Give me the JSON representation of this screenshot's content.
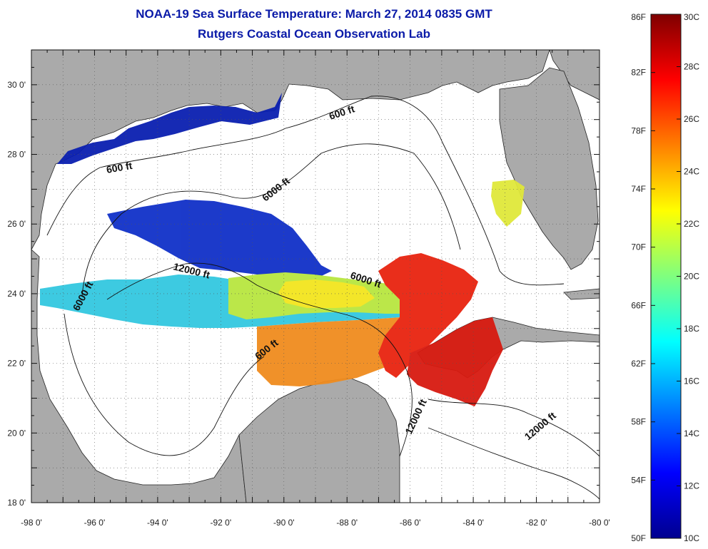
{
  "title": "NOAA-19 Sea Surface Temperature:  March 27, 2014 0835 GMT",
  "subtitle": "Rutgers Coastal Ocean Observation Lab",
  "lon_ticks": [
    "-98 0'",
    "-96 0'",
    "-94 0'",
    "-92 0'",
    "-90 0'",
    "-88 0'",
    "-86 0'",
    "-84 0'",
    "-82 0'",
    "-80 0'"
  ],
  "lat_ticks": [
    "30 0'",
    "28 0'",
    "26 0'",
    "24 0'",
    "22 0'",
    "20 0'",
    "18 0'"
  ],
  "contour_labels": [
    "600 ft",
    "600 ft",
    "6000 ft",
    "12000 ft",
    "6000 ft",
    "6000 ft",
    "600 ft",
    "12000 ft",
    "12000 ft"
  ],
  "colorbar": {
    "fahrenheit": [
      "86F",
      "82F",
      "78F",
      "74F",
      "70F",
      "66F",
      "62F",
      "58F",
      "54F",
      "50F"
    ],
    "celsius": [
      "30C",
      "28C",
      "26C",
      "24C",
      "22C",
      "20C",
      "18C",
      "16C",
      "14C",
      "12C",
      "10C"
    ]
  },
  "colors": {
    "land": "#aaaaaa",
    "ocean": "#ffffff",
    "title": "#0a1aa8"
  }
}
